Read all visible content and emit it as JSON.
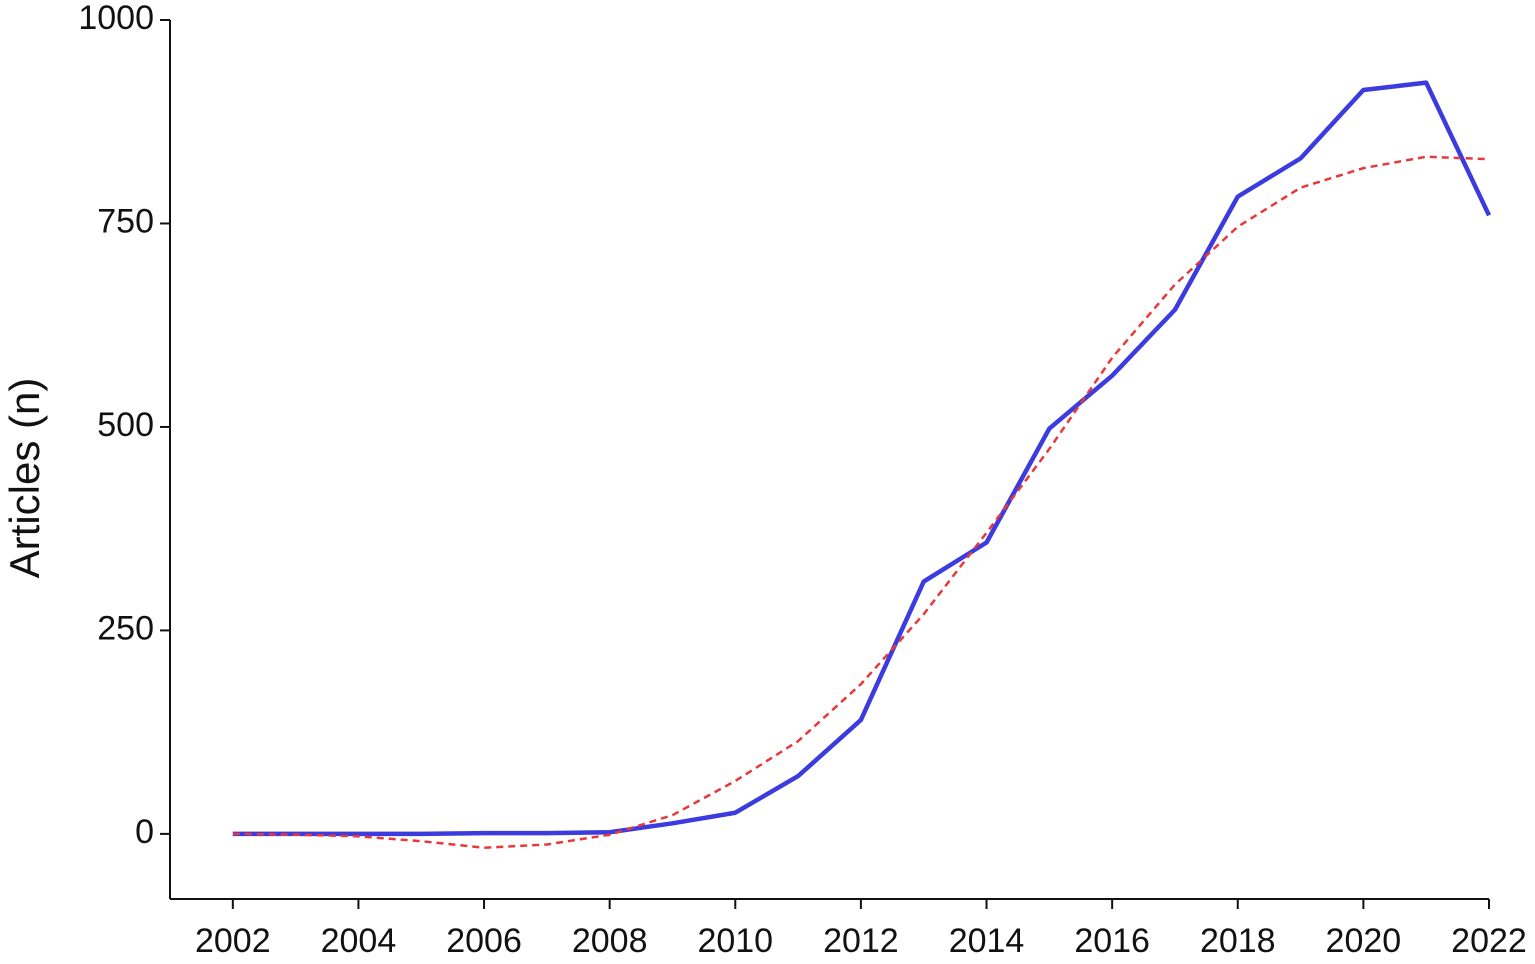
{
  "chart_data": {
    "type": "line",
    "ylabel": "Articles (n)",
    "x": [
      2002,
      2003,
      2004,
      2005,
      2006,
      2007,
      2008,
      2009,
      2010,
      2011,
      2012,
      2013,
      2014,
      2015,
      2016,
      2017,
      2018,
      2019,
      2020,
      2021,
      2022
    ],
    "series": [
      {
        "color": "#3b3be0",
        "dashed": false,
        "values": [
          0,
          0,
          0,
          0,
          1,
          1,
          2,
          13,
          26,
          71,
          140,
          310,
          358,
          498,
          563,
          644,
          783,
          830,
          914,
          923,
          760
        ]
      },
      {
        "color": "#e8383a",
        "dashed": true,
        "values": [
          0,
          -1,
          -3,
          -9,
          -17,
          -13,
          -1,
          23,
          65,
          114,
          184,
          270,
          370,
          473,
          585,
          675,
          746,
          794,
          818,
          832,
          829
        ]
      }
    ],
    "xlim": [
      2001,
      2022
    ],
    "xticks": [
      2002,
      2004,
      2006,
      2008,
      2010,
      2012,
      2014,
      2016,
      2018,
      2020,
      2022
    ],
    "ylim": [
      -80,
      1000
    ],
    "yticks": [
      0,
      250,
      500,
      750,
      1000
    ],
    "grid": false
  }
}
